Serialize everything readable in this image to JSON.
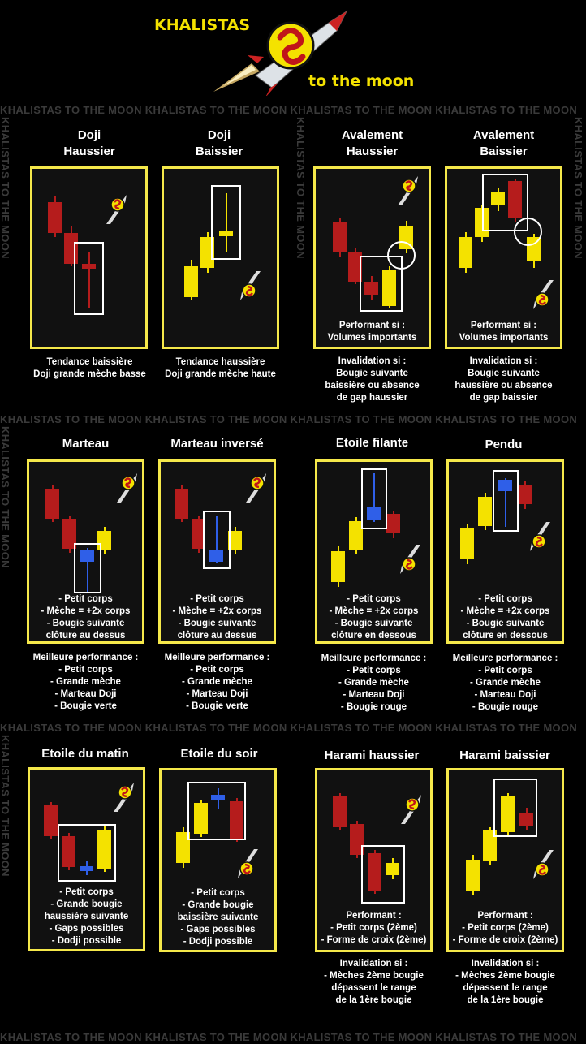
{
  "header": {
    "brand": "KHALISTAS",
    "tagline": "to the moon"
  },
  "watermark": {
    "text": "KHALISTAS TO THE MOON"
  },
  "patterns": [
    {
      "title": "Doji\nHaussier",
      "panel_text": [],
      "notes": [
        "Tendance baissière",
        "Doji grande mèche basse"
      ]
    },
    {
      "title": "Doji\nBaissier",
      "panel_text": [],
      "notes": [
        "Tendance haussière",
        "Doji grande mèche haute"
      ]
    },
    {
      "title": "Avalement\nHaussier",
      "panel_text": [
        "Performant si :",
        "Volumes importants"
      ],
      "notes": [
        "Invalidation si :",
        "Bougie suivante",
        "baissière ou absence",
        "de gap haussier"
      ]
    },
    {
      "title": "Avalement\nBaissier",
      "panel_text": [
        "Performant si :",
        "Volumes importants"
      ],
      "notes": [
        "Invalidation si :",
        "Bougie suivante",
        "haussière ou absence",
        "de gap baissier"
      ]
    },
    {
      "title": "Marteau",
      "panel_text": [
        "- Petit corps",
        "- Mèche = +2x corps",
        "- Bougie suivante",
        "clôture au dessus"
      ],
      "notes": [
        "Meilleure performance :",
        "- Petit corps",
        "- Grande mèche",
        "- Marteau Doji",
        "- Bougie verte"
      ]
    },
    {
      "title": "Marteau inversé",
      "panel_text": [
        "- Petit corps",
        "- Mèche = +2x corps",
        "- Bougie suivante",
        "clôture au dessus"
      ],
      "notes": [
        "Meilleure performance :",
        "- Petit corps",
        "- Grande mèche",
        "- Marteau Doji",
        "- Bougie verte"
      ]
    },
    {
      "title": "Etoile filante",
      "panel_text": [
        "- Petit corps",
        "- Mèche = +2x corps",
        "- Bougie suivante",
        "clôture en dessous"
      ],
      "notes": [
        "Meilleure performance :",
        "- Petit corps",
        "- Grande mèche",
        "- Marteau Doji",
        "- Bougie rouge"
      ]
    },
    {
      "title": "Pendu",
      "panel_text": [
        "- Petit corps",
        "- Mèche = +2x corps",
        "- Bougie suivante",
        "clôture en dessous"
      ],
      "notes": [
        "Meilleure performance :",
        "- Petit corps",
        "- Grande mèche",
        "- Marteau Doji",
        "- Bougie rouge"
      ]
    },
    {
      "title": "Etoile du matin",
      "panel_text": [
        "- Petit corps",
        "- Grande bougie",
        "haussière suivante",
        "- Gaps possibles",
        "- Dodji possible"
      ],
      "notes": []
    },
    {
      "title": "Etoile du soir",
      "panel_text": [
        "- Petit corps",
        "- Grande bougie",
        "baissière suivante",
        "- Gaps possibles",
        "- Dodji possible"
      ],
      "notes": []
    },
    {
      "title": "Harami haussier",
      "panel_text": [
        "Performant :",
        "- Petit corps (2ème)",
        "- Forme de croix (2ème)"
      ],
      "notes": [
        "Invalidation si :",
        "- Mèches 2ème bougie",
        "dépassent le range",
        "de la 1ère bougie"
      ]
    },
    {
      "title": "Harami baissier",
      "panel_text": [
        "Performant :",
        "- Petit corps (2ème)",
        "- Forme de croix (2ème)"
      ],
      "notes": [
        "Invalidation si :",
        "- Mèches 2ème bougie",
        "dépassent le range",
        "de la 1ère bougie"
      ]
    }
  ],
  "colors": {
    "red": "#b51c1c",
    "yellow": "#f4e200",
    "blue": "#2f5fe8",
    "frame": "#f5e84a"
  },
  "icons": [
    "rocket-logo-icon"
  ]
}
